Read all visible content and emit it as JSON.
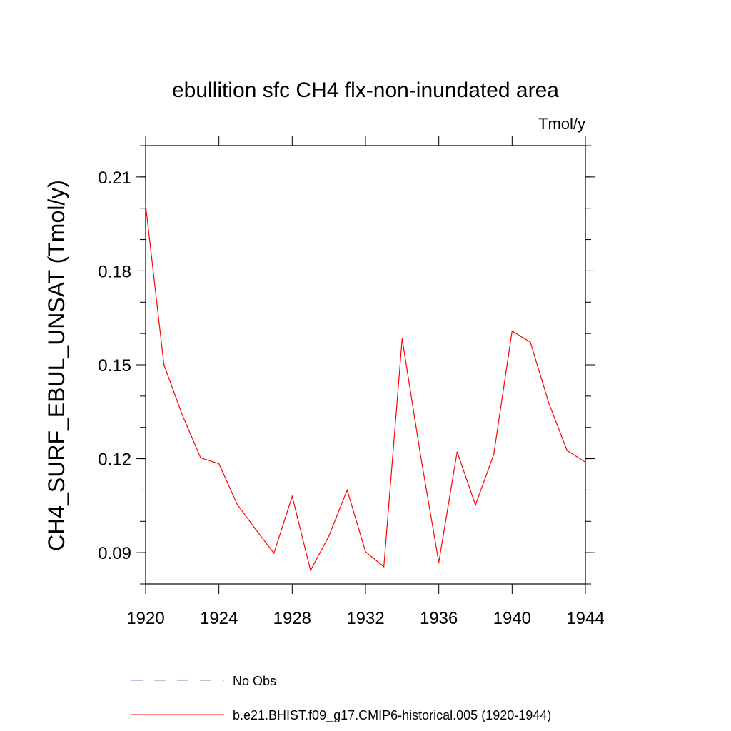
{
  "chart_data": {
    "type": "line",
    "title": "ebullition sfc CH4 flx-non-inundated area",
    "units_label": "Tmol/y",
    "xlabel": "",
    "ylabel": "CH4_SURF_EBUL_UNSAT  (Tmol/y)",
    "xlim": [
      1920,
      1944
    ],
    "ylim": [
      0.08,
      0.22
    ],
    "x_ticks": [
      "1920",
      "1924",
      "1928",
      "1932",
      "1936",
      "1940",
      "1944"
    ],
    "y_ticks": [
      "0.09",
      "0.12",
      "0.15",
      "0.18",
      "0.21"
    ],
    "grid": false,
    "series": [
      {
        "name": "b.e21.BHIST.f09_g17.CMIP6-historical.005 (1920-1944)",
        "color": "#ff0000",
        "style": "solid",
        "x": [
          1920,
          1921,
          1922,
          1923,
          1924,
          1925,
          1926,
          1927,
          1928,
          1929,
          1930,
          1931,
          1932,
          1933,
          1934,
          1935,
          1936,
          1937,
          1938,
          1939,
          1940,
          1941,
          1942,
          1943,
          1944
        ],
        "values": [
          0.201,
          0.15,
          0.134,
          0.1203,
          0.1184,
          0.1054,
          0.0975,
          0.0898,
          0.108,
          0.0843,
          0.0953,
          0.11,
          0.0903,
          0.0855,
          0.1583,
          0.1212,
          0.0869,
          0.1222,
          0.1052,
          0.1214,
          0.1608,
          0.1572,
          0.1378,
          0.1226,
          0.1189
        ]
      }
    ],
    "legend": [
      {
        "label": "No Obs",
        "color": "#8080c0",
        "style": "dashed"
      },
      {
        "label": "b.e21.BHIST.f09_g17.CMIP6-historical.005 (1920-1944)",
        "color": "#ff0000",
        "style": "solid"
      }
    ]
  }
}
